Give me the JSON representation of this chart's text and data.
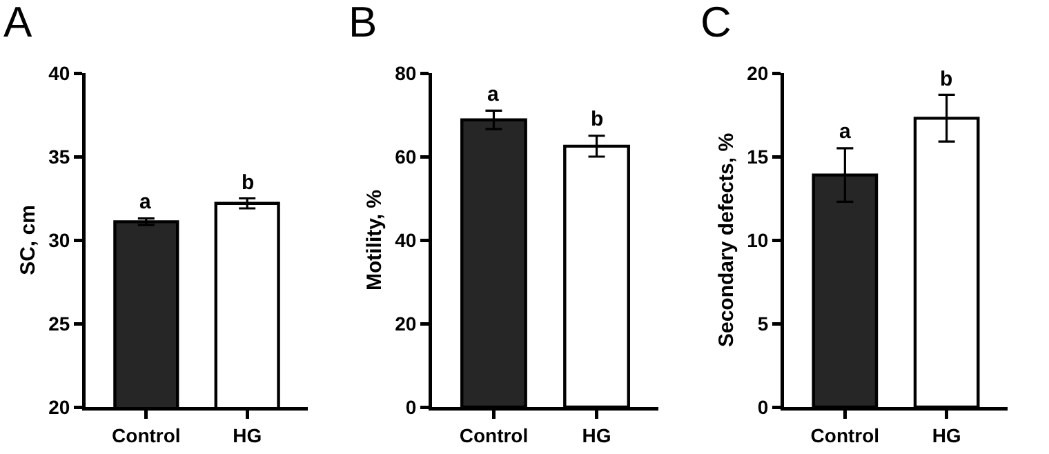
{
  "chart_data": [
    {
      "type": "bar",
      "title": "A",
      "ylabel": "SC, cm",
      "categories": [
        "Control",
        "HG"
      ],
      "values": [
        31.1,
        32.2
      ],
      "colors": [
        "#262626",
        "#ffffff"
      ],
      "errors": [
        0.2,
        0.3
      ],
      "ylim": [
        20,
        40
      ],
      "yticks": [
        20,
        25,
        30,
        35,
        40
      ],
      "grid": false,
      "legend": false,
      "annotations": [
        {
          "text": "a",
          "x": "Control",
          "y": 31.3
        },
        {
          "text": "b",
          "x": "HG",
          "y": 32.5
        }
      ]
    },
    {
      "type": "bar",
      "title": "B",
      "ylabel": "Motility, %",
      "categories": [
        "Control",
        "HG"
      ],
      "values": [
        68.8,
        62.5
      ],
      "colors": [
        "#262626",
        "#ffffff"
      ],
      "errors": [
        2.2,
        2.5
      ],
      "ylim": [
        0,
        80
      ],
      "yticks": [
        0,
        20,
        40,
        60,
        80
      ],
      "grid": false,
      "legend": false,
      "annotations": [
        {
          "text": "a",
          "x": "Control",
          "y": 71.0
        },
        {
          "text": "b",
          "x": "HG",
          "y": 65.0
        }
      ]
    },
    {
      "type": "bar",
      "title": "C",
      "ylabel": "Secondary defects, %",
      "categories": [
        "Control",
        "HG"
      ],
      "values": [
        13.9,
        17.3
      ],
      "colors": [
        "#262626",
        "#ffffff"
      ],
      "errors": [
        1.6,
        1.4
      ],
      "ylim": [
        0,
        20
      ],
      "yticks": [
        0,
        5,
        10,
        15,
        20
      ],
      "grid": false,
      "legend": false,
      "annotations": [
        {
          "text": "a",
          "x": "Control",
          "y": 15.5
        },
        {
          "text": "b",
          "x": "HG",
          "y": 18.7
        }
      ]
    }
  ]
}
